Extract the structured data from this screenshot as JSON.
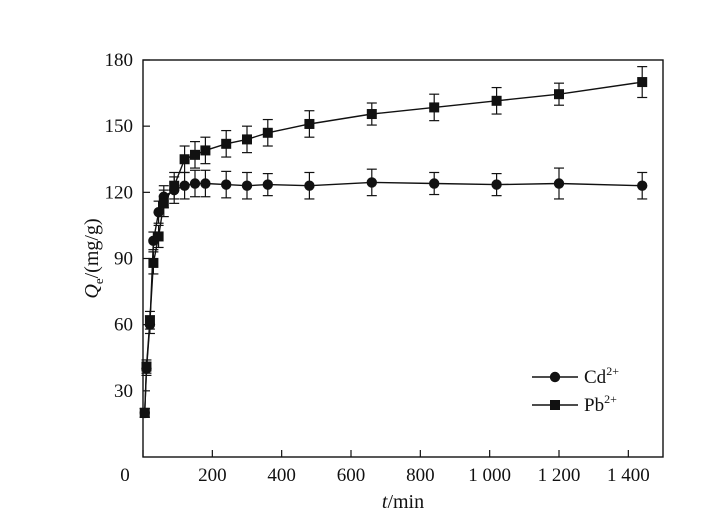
{
  "chart_data": {
    "type": "line",
    "xlabel_italic": "t",
    "xlabel_unit": "/min",
    "ylabel_symbol": "Q",
    "ylabel_subscript": "e",
    "ylabel_unit": "/(mg/g)",
    "xlim": [
      0,
      1500
    ],
    "ylim": [
      0,
      180
    ],
    "xticks": [
      0,
      200,
      400,
      600,
      800,
      1000,
      1200,
      1400
    ],
    "xtick_labels": [
      "0",
      "200",
      "400",
      "600",
      "800",
      "1 000",
      "1 200",
      "1 400"
    ],
    "yticks": [
      30,
      60,
      90,
      120,
      150,
      180
    ],
    "ytick_labels": [
      "30",
      "60",
      "90",
      "120",
      "150",
      "180"
    ],
    "grid": false,
    "legend_position": "bottom-right",
    "series": [
      {
        "name": "Cd",
        "superscript": "2+",
        "marker": "circle",
        "color": "#111111",
        "x": [
          5,
          10,
          20,
          30,
          45,
          60,
          90,
          120,
          150,
          180,
          240,
          300,
          360,
          480,
          660,
          840,
          1020,
          1200,
          1440
        ],
        "y": [
          20,
          40,
          60,
          98,
          111,
          118,
          121,
          123,
          124,
          124,
          123.5,
          123,
          123.5,
          123,
          124.5,
          124,
          123.5,
          124,
          123
        ],
        "err": [
          2,
          3,
          4,
          4,
          5,
          5,
          6,
          6,
          6,
          6,
          6,
          6,
          5,
          6,
          6,
          5,
          5,
          7,
          6
        ]
      },
      {
        "name": "Pb",
        "superscript": "2+",
        "marker": "square",
        "color": "#111111",
        "x": [
          5,
          10,
          20,
          30,
          45,
          60,
          90,
          120,
          150,
          180,
          240,
          300,
          360,
          480,
          660,
          840,
          1020,
          1200,
          1440
        ],
        "y": [
          20,
          41,
          62,
          88,
          100,
          115,
          123,
          135,
          137,
          139,
          142,
          144,
          147,
          151,
          155.5,
          158.5,
          161.5,
          164.5,
          170
        ],
        "err": [
          2,
          3,
          4,
          5,
          5,
          6,
          6,
          6,
          6,
          6,
          6,
          6,
          6,
          6,
          5,
          6,
          6,
          5,
          7
        ]
      }
    ]
  }
}
